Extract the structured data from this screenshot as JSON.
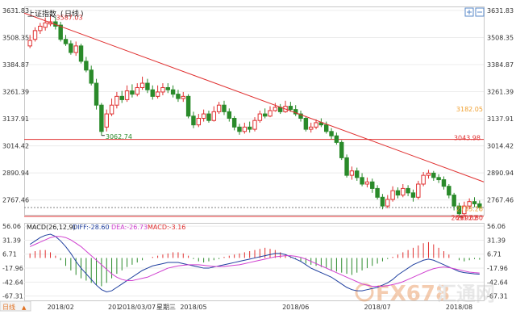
{
  "header": {
    "index_name": "上证指数",
    "period": "日线"
  },
  "footer": {
    "period_selector": "日线",
    "cursor_date": "2018/03/07",
    "cursor_weekday": "星期三",
    "cursor_prefix": "201"
  },
  "watermark": {
    "text": "FX678",
    "brand": "汇通网"
  },
  "colors": {
    "up": "#e03030",
    "down": "#2a8a2a",
    "trend": "#e03030",
    "diff": "#1f3f9f",
    "dea": "#d040d0",
    "dotted": "#808080",
    "macd_text": "#e03030"
  },
  "icons": {
    "zoom_in": "plus-square-icon",
    "zoom_out": "minus-square-icon"
  },
  "chart_data": [
    {
      "type": "candlestick",
      "title": "上证指数 (日线)",
      "yticks": [
        "3631.83",
        "3508.35",
        "3384.87",
        "3261.39",
        "3137.91",
        "3014.42",
        "2890.94",
        "2767.46"
      ],
      "ylim": [
        2700,
        3650
      ],
      "xticks": [
        "2018/02",
        "2018/04",
        "2018/05",
        "2018/06",
        "2018/07",
        "2018/08"
      ],
      "annotations": {
        "high": "3587.03",
        "mid_low": "3062.74",
        "low": "2691.02",
        "level_3043": "3043.98",
        "level_3182": "3182.05",
        "price_2733": "2733.26",
        "price_2692": "2692.60"
      },
      "horizontal_lines": [
        {
          "value": 3043.98,
          "label": "3043.98"
        },
        {
          "value": 2692.6,
          "label": "2692.60"
        }
      ],
      "trendline": {
        "from": 3620,
        "to": 2850
      },
      "candles": [
        [
          3470,
          3495,
          3520,
          3460
        ],
        [
          3500,
          3540,
          3555,
          3490
        ],
        [
          3540,
          3560,
          3575,
          3525
        ],
        [
          3555,
          3575,
          3600,
          3540
        ],
        [
          3570,
          3580,
          3610,
          3560
        ],
        [
          3580,
          3560,
          3600,
          3545
        ],
        [
          3565,
          3500,
          3580,
          3490
        ],
        [
          3500,
          3480,
          3520,
          3470
        ],
        [
          3480,
          3440,
          3495,
          3430
        ],
        [
          3440,
          3470,
          3490,
          3425
        ],
        [
          3470,
          3400,
          3480,
          3390
        ],
        [
          3400,
          3360,
          3420,
          3350
        ],
        [
          3360,
          3300,
          3380,
          3290
        ],
        [
          3300,
          3200,
          3320,
          3180
        ],
        [
          3200,
          3080,
          3210,
          3062
        ],
        [
          3100,
          3160,
          3180,
          3080
        ],
        [
          3160,
          3200,
          3230,
          3150
        ],
        [
          3200,
          3240,
          3260,
          3185
        ],
        [
          3240,
          3225,
          3265,
          3210
        ],
        [
          3225,
          3265,
          3290,
          3215
        ],
        [
          3265,
          3250,
          3295,
          3235
        ],
        [
          3250,
          3280,
          3300,
          3240
        ],
        [
          3280,
          3300,
          3330,
          3270
        ],
        [
          3300,
          3270,
          3320,
          3255
        ],
        [
          3270,
          3240,
          3290,
          3225
        ],
        [
          3240,
          3260,
          3290,
          3230
        ],
        [
          3260,
          3280,
          3300,
          3245
        ],
        [
          3280,
          3270,
          3300,
          3255
        ],
        [
          3270,
          3250,
          3290,
          3235
        ],
        [
          3250,
          3230,
          3270,
          3215
        ],
        [
          3230,
          3240,
          3260,
          3215
        ],
        [
          3240,
          3150,
          3250,
          3140
        ],
        [
          3150,
          3110,
          3170,
          3095
        ],
        [
          3110,
          3140,
          3160,
          3100
        ],
        [
          3140,
          3160,
          3180,
          3125
        ],
        [
          3160,
          3130,
          3175,
          3120
        ],
        [
          3130,
          3170,
          3195,
          3125
        ],
        [
          3170,
          3200,
          3215,
          3160
        ],
        [
          3200,
          3170,
          3220,
          3155
        ],
        [
          3170,
          3140,
          3185,
          3125
        ],
        [
          3140,
          3100,
          3150,
          3085
        ],
        [
          3100,
          3080,
          3115,
          3065
        ],
        [
          3080,
          3100,
          3120,
          3070
        ],
        [
          3100,
          3090,
          3125,
          3075
        ],
        [
          3090,
          3130,
          3145,
          3080
        ],
        [
          3130,
          3160,
          3175,
          3120
        ],
        [
          3160,
          3150,
          3185,
          3140
        ],
        [
          3150,
          3175,
          3195,
          3145
        ],
        [
          3175,
          3190,
          3210,
          3170
        ],
        [
          3190,
          3170,
          3205,
          3160
        ],
        [
          3170,
          3195,
          3220,
          3165
        ],
        [
          3195,
          3180,
          3215,
          3170
        ],
        [
          3180,
          3160,
          3200,
          3150
        ],
        [
          3160,
          3140,
          3175,
          3125
        ],
        [
          3140,
          3090,
          3150,
          3080
        ],
        [
          3090,
          3100,
          3120,
          3075
        ],
        [
          3100,
          3120,
          3135,
          3090
        ],
        [
          3120,
          3110,
          3140,
          3100
        ],
        [
          3110,
          3080,
          3125,
          3070
        ],
        [
          3080,
          3060,
          3095,
          3045
        ],
        [
          3060,
          3030,
          3075,
          3020
        ],
        [
          3030,
          2960,
          3040,
          2950
        ],
        [
          2960,
          2880,
          2975,
          2870
        ],
        [
          2880,
          2900,
          2920,
          2860
        ],
        [
          2900,
          2870,
          2915,
          2855
        ],
        [
          2870,
          2840,
          2890,
          2830
        ],
        [
          2840,
          2850,
          2870,
          2825
        ],
        [
          2850,
          2820,
          2865,
          2800
        ],
        [
          2820,
          2780,
          2835,
          2770
        ],
        [
          2780,
          2740,
          2795,
          2725
        ],
        [
          2740,
          2770,
          2790,
          2730
        ],
        [
          2770,
          2810,
          2830,
          2760
        ],
        [
          2810,
          2790,
          2825,
          2775
        ],
        [
          2790,
          2820,
          2840,
          2780
        ],
        [
          2820,
          2800,
          2835,
          2785
        ],
        [
          2800,
          2780,
          2815,
          2760
        ],
        [
          2780,
          2840,
          2855,
          2770
        ],
        [
          2840,
          2880,
          2895,
          2830
        ],
        [
          2880,
          2890,
          2905,
          2865
        ],
        [
          2890,
          2870,
          2900,
          2855
        ],
        [
          2870,
          2860,
          2885,
          2845
        ],
        [
          2860,
          2830,
          2875,
          2815
        ],
        [
          2830,
          2790,
          2840,
          2775
        ],
        [
          2790,
          2740,
          2800,
          2720
        ],
        [
          2740,
          2705,
          2755,
          2691
        ],
        [
          2705,
          2740,
          2760,
          2695
        ],
        [
          2740,
          2760,
          2775,
          2725
        ],
        [
          2760,
          2750,
          2780,
          2735
        ],
        [
          2750,
          2733,
          2765,
          2720
        ]
      ]
    },
    {
      "type": "bar",
      "title": "MACD(26,12,9)",
      "series": [
        {
          "name": "DIFF",
          "label": "DIFF:-28.60"
        },
        {
          "name": "DEA",
          "label": "DEA:-26.73"
        },
        {
          "name": "MACD",
          "label": "MACD:-3.16"
        }
      ],
      "yticks": [
        "56.06",
        "31.39",
        "6.71",
        "-17.96",
        "-42.64",
        "-67.31"
      ],
      "ylim": [
        -75,
        62
      ],
      "macd": [
        8,
        12,
        14,
        14,
        10,
        4,
        -4,
        -14,
        -22,
        -30,
        -36,
        -40,
        -44,
        -48,
        -50,
        -44,
        -36,
        -28,
        -22,
        -16,
        -12,
        -8,
        -4,
        0,
        2,
        4,
        6,
        8,
        10,
        10,
        8,
        4,
        -2,
        -6,
        -8,
        -6,
        -4,
        -2,
        2,
        4,
        6,
        8,
        10,
        12,
        14,
        16,
        18,
        16,
        14,
        10,
        6,
        2,
        -2,
        -6,
        -10,
        -12,
        -14,
        -16,
        -18,
        -22,
        -24,
        -26,
        -28,
        -30,
        -26,
        -22,
        -18,
        -14,
        -10,
        -6,
        -2,
        2,
        6,
        10,
        14,
        18,
        22,
        26,
        28,
        24,
        18,
        12,
        6,
        0,
        -4,
        -6,
        -4,
        -2,
        -3
      ],
      "diff": [
        24,
        30,
        36,
        40,
        42,
        38,
        30,
        20,
        8,
        -6,
        -18,
        -28,
        -38,
        -48,
        -56,
        -60,
        -58,
        -52,
        -46,
        -40,
        -34,
        -28,
        -22,
        -18,
        -14,
        -12,
        -10,
        -8,
        -8,
        -8,
        -10,
        -12,
        -14,
        -16,
        -18,
        -18,
        -16,
        -14,
        -12,
        -10,
        -8,
        -6,
        -4,
        -2,
        0,
        2,
        4,
        6,
        8,
        8,
        6,
        2,
        -2,
        -6,
        -12,
        -18,
        -22,
        -26,
        -30,
        -34,
        -40,
        -46,
        -52,
        -56,
        -58,
        -58,
        -56,
        -54,
        -52,
        -48,
        -44,
        -38,
        -30,
        -24,
        -18,
        -12,
        -8,
        -4,
        -2,
        -4,
        -8,
        -12,
        -16,
        -20,
        -24,
        -26,
        -27,
        -28,
        -28.6
      ],
      "dea": [
        20,
        24,
        28,
        32,
        36,
        38,
        38,
        36,
        32,
        26,
        20,
        12,
        4,
        -4,
        -12,
        -20,
        -28,
        -34,
        -38,
        -40,
        -40,
        -38,
        -36,
        -34,
        -30,
        -26,
        -22,
        -18,
        -16,
        -14,
        -13,
        -12,
        -12,
        -12,
        -13,
        -14,
        -15,
        -15,
        -15,
        -14,
        -13,
        -12,
        -10,
        -8,
        -6,
        -4,
        -2,
        0,
        2,
        3,
        4,
        4,
        3,
        1,
        -2,
        -6,
        -10,
        -14,
        -18,
        -22,
        -26,
        -30,
        -34,
        -38,
        -42,
        -46,
        -48,
        -50,
        -50,
        -50,
        -49,
        -47,
        -45,
        -42,
        -38,
        -34,
        -30,
        -26,
        -22,
        -19,
        -17,
        -16,
        -17,
        -19,
        -21,
        -23,
        -25,
        -26,
        -26.73
      ]
    }
  ]
}
